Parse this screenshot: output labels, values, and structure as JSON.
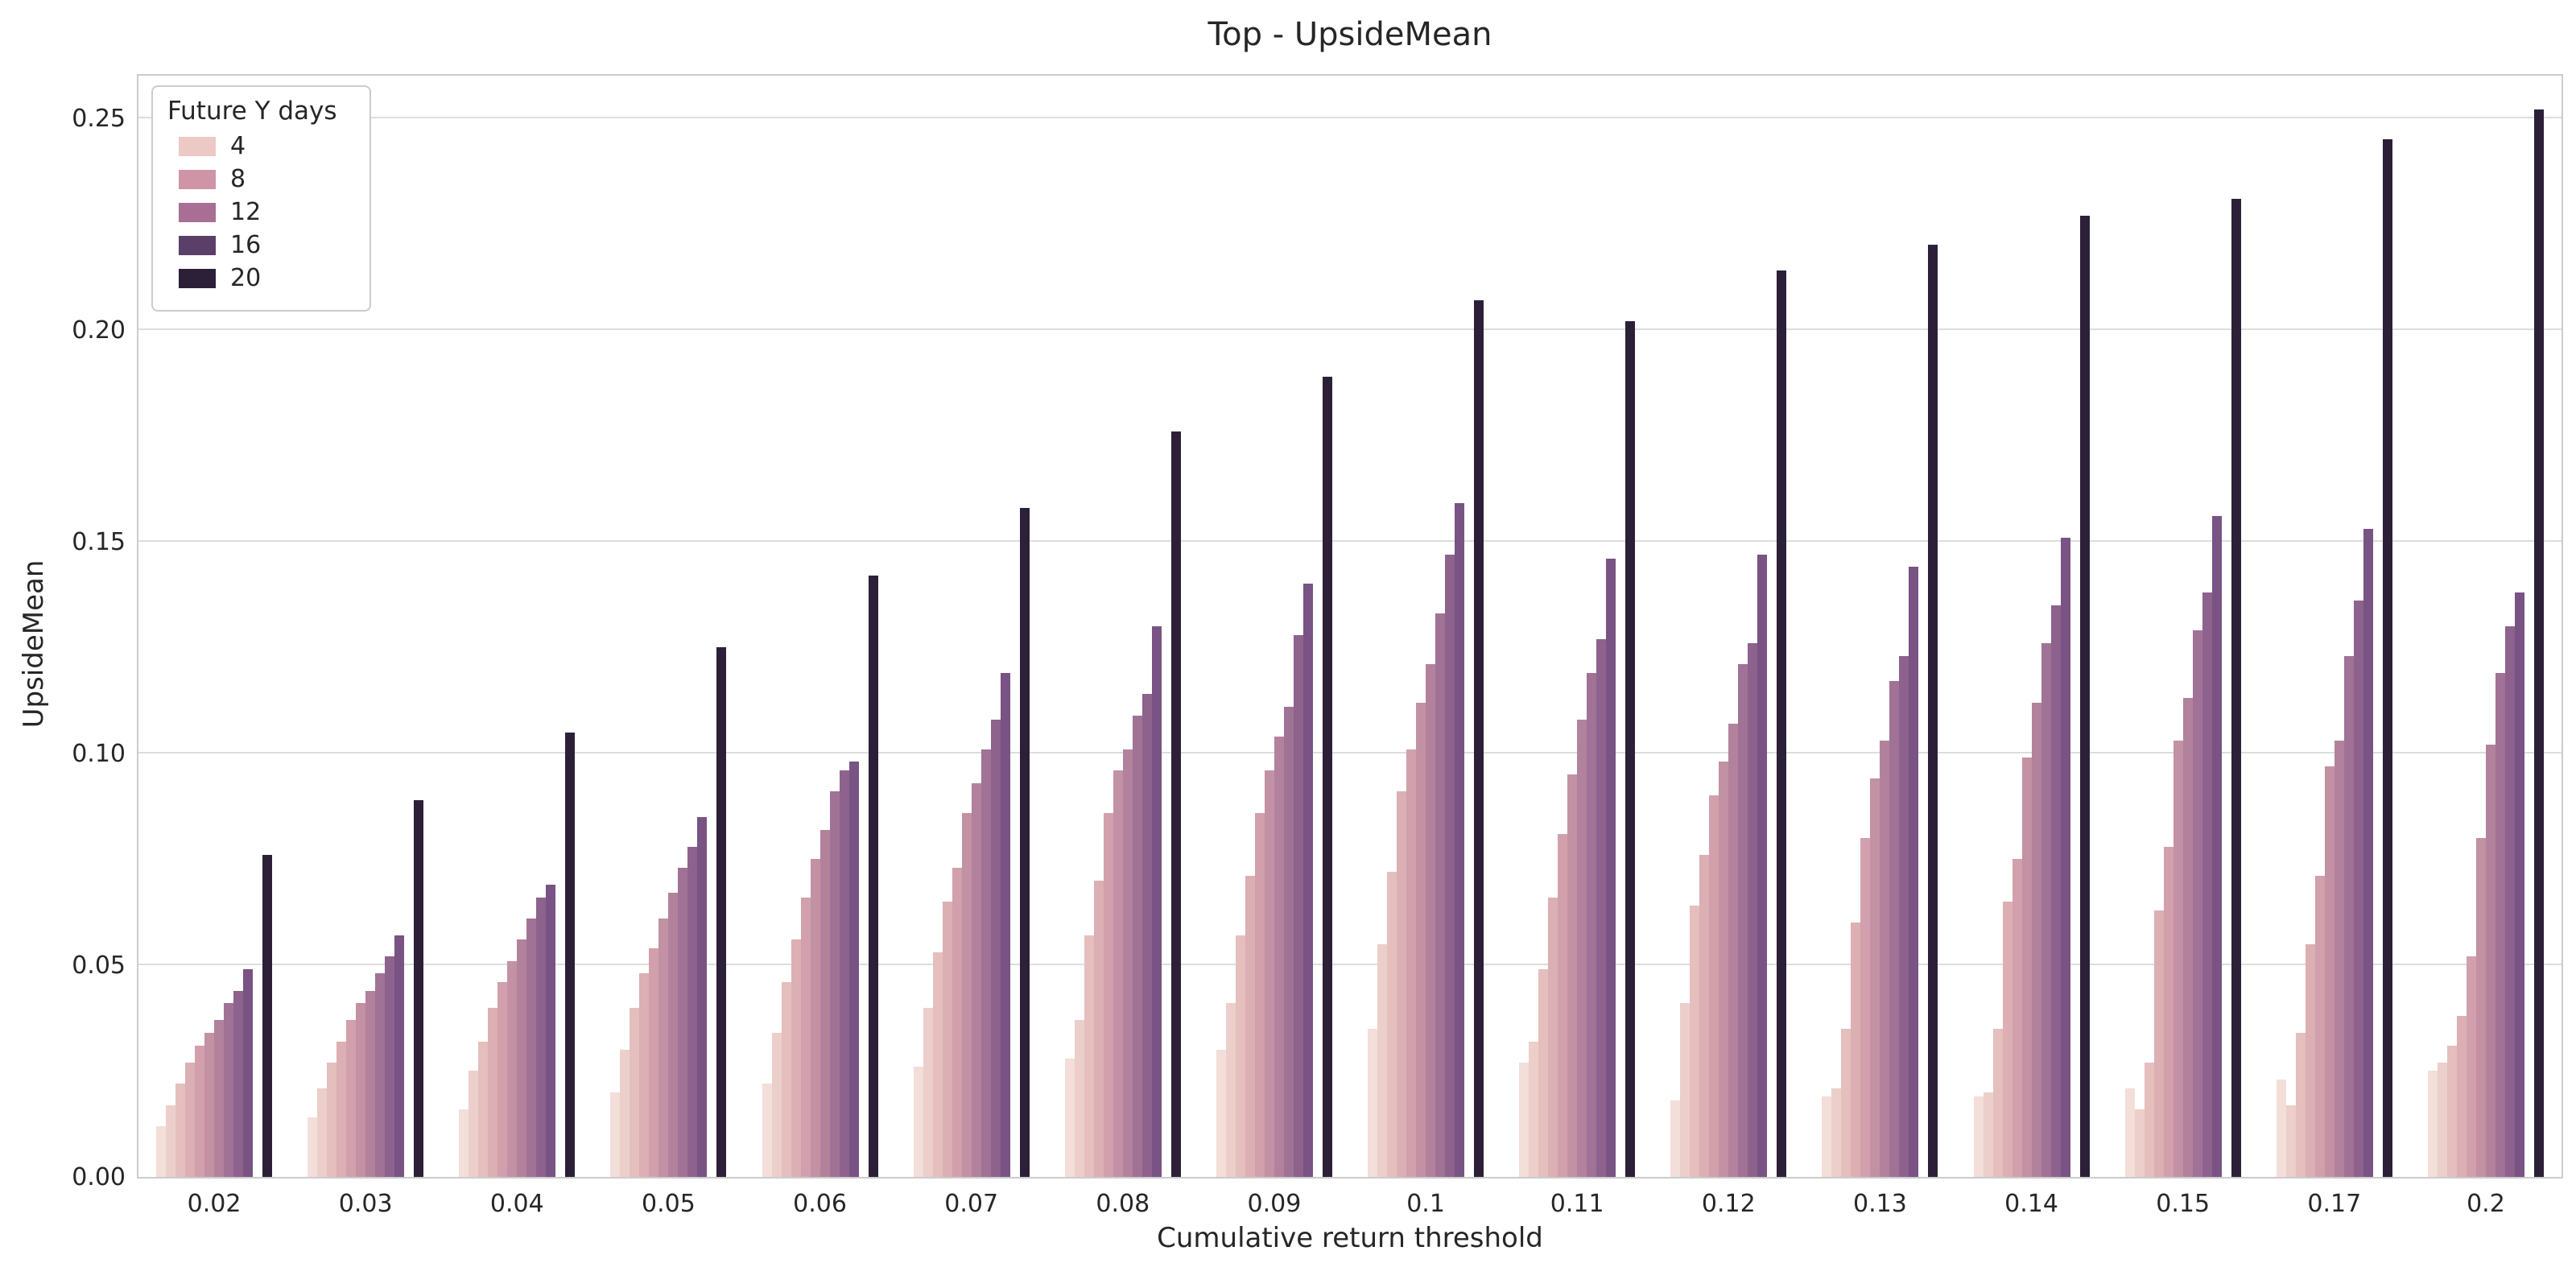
{
  "chart": {
    "title": "Top - UpsideMean",
    "xlabel": "Cumulative return threshold",
    "ylabel": "UpsideMean",
    "legend_title": "Future Y days"
  },
  "chart_data": {
    "type": "bar",
    "title": "Top - UpsideMean",
    "xlabel": "Cumulative return threshold",
    "ylabel": "UpsideMean",
    "ylim": [
      0,
      0.26
    ],
    "yticks": [
      "0.00",
      "0.05",
      "0.10",
      "0.15",
      "0.20",
      "0.25"
    ],
    "grid": "horizontal",
    "legend": {
      "title": "Future Y days",
      "position": "upper left",
      "entries": [
        {
          "label": "4",
          "color": "#ecc9c5"
        },
        {
          "label": "8",
          "color": "#d094a7"
        },
        {
          "label": "12",
          "color": "#a86e94"
        },
        {
          "label": "16",
          "color": "#5a3f68"
        },
        {
          "label": "20",
          "color": "#2c2038"
        }
      ]
    },
    "bar_colors": [
      "#f3ded9",
      "#eccfca",
      "#e4bfbe",
      "#dbafb4",
      "#d1a0ac",
      "#c391a4",
      "#b2829d",
      "#a07296",
      "#8d628d",
      "#785383",
      "#2c2038"
    ],
    "gap_before_last_bar": true,
    "categories": [
      "0.02",
      "0.03",
      "0.04",
      "0.05",
      "0.06",
      "0.07",
      "0.08",
      "0.09",
      "0.1",
      "0.11",
      "0.12",
      "0.13",
      "0.14",
      "0.15",
      "0.17",
      "0.2"
    ],
    "groups": [
      {
        "category": "0.02",
        "values": [
          0.012,
          0.017,
          0.022,
          0.027,
          0.031,
          0.034,
          0.037,
          0.041,
          0.044,
          0.049,
          0.076
        ]
      },
      {
        "category": "0.03",
        "values": [
          0.014,
          0.021,
          0.027,
          0.032,
          0.037,
          0.041,
          0.044,
          0.048,
          0.052,
          0.057,
          0.089
        ]
      },
      {
        "category": "0.04",
        "values": [
          0.016,
          0.025,
          0.032,
          0.04,
          0.046,
          0.051,
          0.056,
          0.061,
          0.066,
          0.069,
          0.105
        ]
      },
      {
        "category": "0.05",
        "values": [
          0.02,
          0.03,
          0.04,
          0.048,
          0.054,
          0.061,
          0.067,
          0.073,
          0.078,
          0.085,
          0.125
        ]
      },
      {
        "category": "0.06",
        "values": [
          0.022,
          0.034,
          0.046,
          0.056,
          0.066,
          0.075,
          0.082,
          0.091,
          0.096,
          0.098,
          0.142
        ]
      },
      {
        "category": "0.07",
        "values": [
          0.026,
          0.04,
          0.053,
          0.065,
          0.073,
          0.086,
          0.093,
          0.101,
          0.108,
          0.119,
          0.158
        ]
      },
      {
        "category": "0.08",
        "values": [
          0.028,
          0.037,
          0.057,
          0.07,
          0.086,
          0.096,
          0.101,
          0.109,
          0.114,
          0.13,
          0.176
        ]
      },
      {
        "category": "0.09",
        "values": [
          0.03,
          0.041,
          0.057,
          0.071,
          0.086,
          0.096,
          0.104,
          0.111,
          0.128,
          0.14,
          0.189
        ]
      },
      {
        "category": "0.1",
        "values": [
          0.035,
          0.055,
          0.072,
          0.091,
          0.101,
          0.112,
          0.121,
          0.133,
          0.147,
          0.159,
          0.207
        ]
      },
      {
        "category": "0.11",
        "values": [
          0.027,
          0.032,
          0.049,
          0.066,
          0.081,
          0.095,
          0.108,
          0.119,
          0.127,
          0.146,
          0.202
        ]
      },
      {
        "category": "0.12",
        "values": [
          0.018,
          0.041,
          0.064,
          0.076,
          0.09,
          0.098,
          0.107,
          0.121,
          0.126,
          0.147,
          0.214
        ]
      },
      {
        "category": "0.13",
        "values": [
          0.019,
          0.021,
          0.035,
          0.06,
          0.08,
          0.094,
          0.103,
          0.117,
          0.123,
          0.144,
          0.22
        ]
      },
      {
        "category": "0.14",
        "values": [
          0.019,
          0.02,
          0.035,
          0.065,
          0.075,
          0.099,
          0.112,
          0.126,
          0.135,
          0.151,
          0.227
        ]
      },
      {
        "category": "0.15",
        "values": [
          0.021,
          0.016,
          0.027,
          0.063,
          0.078,
          0.103,
          0.113,
          0.129,
          0.138,
          0.156,
          0.231
        ]
      },
      {
        "category": "0.17",
        "values": [
          0.023,
          0.017,
          0.034,
          0.055,
          0.071,
          0.097,
          0.103,
          0.123,
          0.136,
          0.153,
          0.245
        ]
      },
      {
        "category": "0.2",
        "values": [
          0.025,
          0.027,
          0.031,
          0.038,
          0.052,
          0.08,
          0.102,
          0.119,
          0.13,
          0.138,
          0.252
        ]
      }
    ]
  }
}
